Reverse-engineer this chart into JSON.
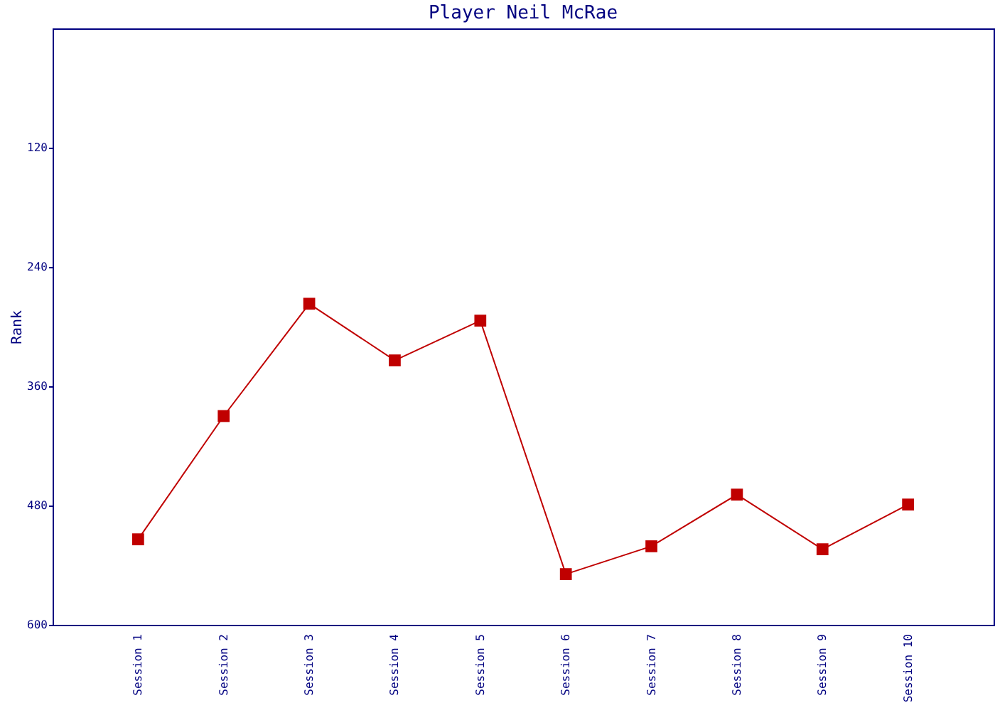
{
  "chart_data": {
    "type": "line",
    "title": "Player Neil McRae",
    "ylabel": "Rank",
    "categories": [
      "Session 1",
      "Session 2",
      "Session 3",
      "Session 4",
      "Session 5",
      "Session 6",
      "Session 7",
      "Session 8",
      "Session 9",
      "Session 10"
    ],
    "series": [
      {
        "color": "#c00000",
        "values": [
          514,
          390,
          277,
          334,
          294,
          549,
          521,
          469,
          524,
          479
        ]
      }
    ],
    "ylim": [
      600,
      0
    ],
    "yticks": [
      120,
      240,
      360,
      480,
      600
    ],
    "grid": false,
    "legend": false,
    "marker": "square",
    "line_style": "solid"
  }
}
